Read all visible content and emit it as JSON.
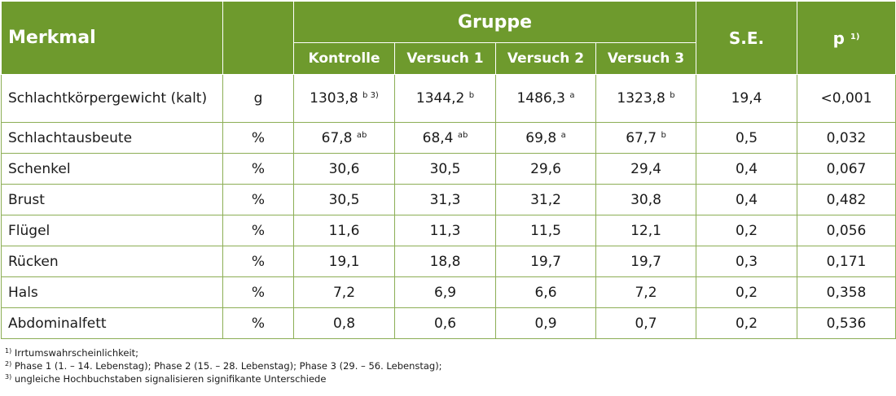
{
  "headers": {
    "merkmal": "Merkmal",
    "gruppe": "Gruppe",
    "se": "S.E.",
    "p": "p",
    "p_sup": "1)",
    "groups": [
      "Kontrolle",
      "Versuch 1",
      "Versuch 2",
      "Versuch 3"
    ]
  },
  "rows": [
    {
      "label": "Schlachtkörpergewicht (kalt)",
      "unit": "g",
      "vals": [
        {
          "v": "1303,8",
          "s": "b 3)"
        },
        {
          "v": "1344,2",
          "s": "b"
        },
        {
          "v": "1486,3",
          "s": "a"
        },
        {
          "v": "1323,8",
          "s": "b"
        }
      ],
      "se": "19,4",
      "p": "<0,001"
    },
    {
      "label": "Schlachtausbeute",
      "unit": "%",
      "vals": [
        {
          "v": "67,8",
          "s": "ab"
        },
        {
          "v": "68,4",
          "s": "ab"
        },
        {
          "v": "69,8",
          "s": "a"
        },
        {
          "v": "67,7",
          "s": "b"
        }
      ],
      "se": "0,5",
      "p": "0,032"
    },
    {
      "label": "Schenkel",
      "unit": "%",
      "vals": [
        {
          "v": "30,6",
          "s": ""
        },
        {
          "v": "30,5",
          "s": ""
        },
        {
          "v": "29,6",
          "s": ""
        },
        {
          "v": "29,4",
          "s": ""
        }
      ],
      "se": "0,4",
      "p": "0,067"
    },
    {
      "label": "Brust",
      "unit": "%",
      "vals": [
        {
          "v": "30,5",
          "s": ""
        },
        {
          "v": "31,3",
          "s": ""
        },
        {
          "v": "31,2",
          "s": ""
        },
        {
          "v": "30,8",
          "s": ""
        }
      ],
      "se": "0,4",
      "p": "0,482"
    },
    {
      "label": "Flügel",
      "unit": "%",
      "vals": [
        {
          "v": "11,6",
          "s": ""
        },
        {
          "v": "11,3",
          "s": ""
        },
        {
          "v": "11,5",
          "s": ""
        },
        {
          "v": "12,1",
          "s": ""
        }
      ],
      "se": "0,2",
      "p": "0,056"
    },
    {
      "label": "Rücken",
      "unit": "%",
      "vals": [
        {
          "v": "19,1",
          "s": ""
        },
        {
          "v": "18,8",
          "s": ""
        },
        {
          "v": "19,7",
          "s": ""
        },
        {
          "v": "19,7",
          "s": ""
        }
      ],
      "se": "0,3",
      "p": "0,171"
    },
    {
      "label": "Hals",
      "unit": "%",
      "vals": [
        {
          "v": "7,2",
          "s": ""
        },
        {
          "v": "6,9",
          "s": ""
        },
        {
          "v": "6,6",
          "s": ""
        },
        {
          "v": "7,2",
          "s": ""
        }
      ],
      "se": "0,2",
      "p": "0,358"
    },
    {
      "label": "Abdominalfett",
      "unit": "%",
      "vals": [
        {
          "v": "0,8",
          "s": ""
        },
        {
          "v": "0,6",
          "s": ""
        },
        {
          "v": "0,9",
          "s": ""
        },
        {
          "v": "0,7",
          "s": ""
        }
      ],
      "se": "0,2",
      "p": "0,536"
    }
  ],
  "footnotes": [
    {
      "sup": "1)",
      "text": " Irrtumswahrscheinlichkeit;"
    },
    {
      "sup": "2)",
      "text": " Phase 1 (1. – 14. Lebenstag); Phase 2 (15. – 28. Lebenstag); Phase 3 (29. – 56. Lebenstag);"
    },
    {
      "sup": "3)",
      "text": " ungleiche Hochbuchstaben signalisieren signifikante Unterschiede"
    }
  ],
  "colors": {
    "header": "#6e9a2d",
    "border": "#8cae55"
  }
}
